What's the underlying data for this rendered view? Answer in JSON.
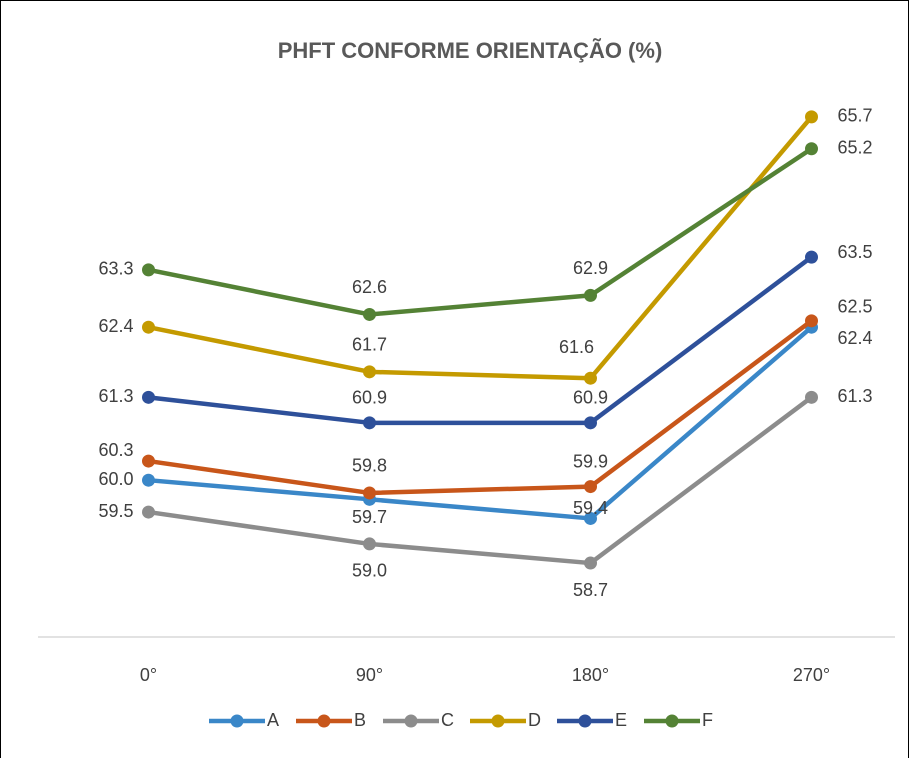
{
  "chart_data": {
    "type": "line",
    "title": "PHFT CONFORME ORIENTAÇÃO (%)",
    "categories": [
      "0°",
      "90°",
      "180°",
      "270°"
    ],
    "series": [
      {
        "name": "A",
        "color": "#3a87c8",
        "values": [
          60.0,
          59.7,
          59.4,
          62.4
        ],
        "value_labels": [
          "60.0",
          "59.7",
          "59.4",
          "62.4"
        ]
      },
      {
        "name": "B",
        "color": "#c8561a",
        "values": [
          60.3,
          59.8,
          59.9,
          62.5
        ],
        "value_labels": [
          "60.3",
          "59.8",
          "59.9",
          "62.5"
        ]
      },
      {
        "name": "C",
        "color": "#8c8c8c",
        "values": [
          59.5,
          59.0,
          58.7,
          61.3
        ],
        "value_labels": [
          "59.5",
          "59.0",
          "58.7",
          "61.3"
        ]
      },
      {
        "name": "D",
        "color": "#c49a00",
        "values": [
          62.4,
          61.7,
          61.6,
          65.7
        ],
        "value_labels": [
          "62.4",
          "61.7",
          "61.6",
          "65.7"
        ]
      },
      {
        "name": "E",
        "color": "#2e509a",
        "values": [
          61.3,
          60.9,
          60.9,
          63.5
        ],
        "value_labels": [
          "61.3",
          "60.9",
          "60.9",
          "63.5"
        ]
      },
      {
        "name": "F",
        "color": "#548235",
        "values": [
          63.3,
          62.6,
          62.9,
          65.2
        ],
        "value_labels": [
          "63.3",
          "62.6",
          "62.9",
          "65.2"
        ]
      }
    ],
    "ylim": [
      57.54,
      67
    ],
    "legend": "bottom"
  }
}
